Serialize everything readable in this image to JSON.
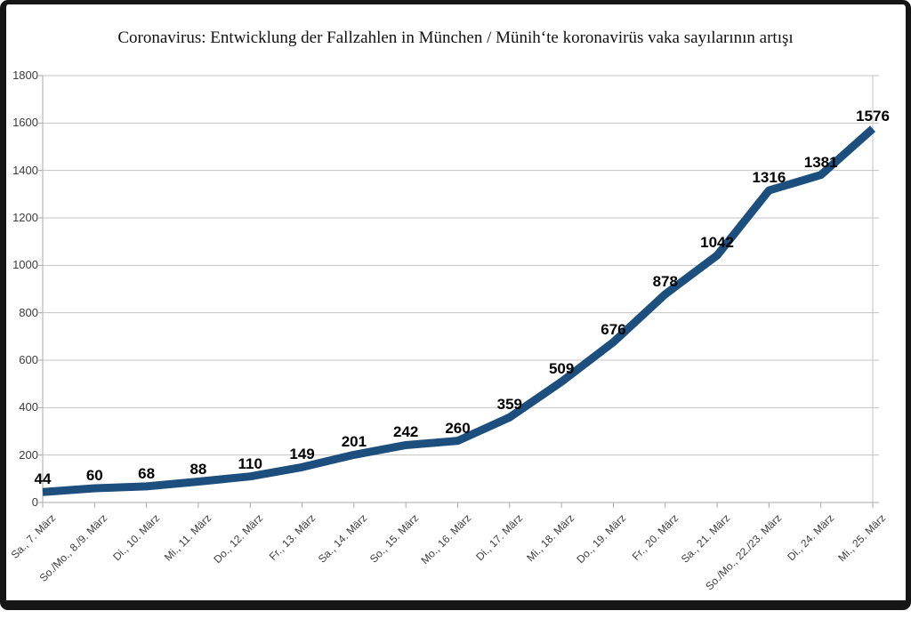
{
  "chart_data": {
    "type": "line",
    "title": "Coronavirus: Entwicklung der Fallzahlen in München / Münih‘te koronavirüs vaka sayılarının artışı",
    "categories": [
      "Sa., 7. März",
      "So./Mo., 8./9. März",
      "Di., 10. März",
      "Mi., 11. März",
      "Do., 12. März",
      "Fr., 13. März",
      "Sa., 14. März",
      "So., 15. März",
      "Mo., 16. März",
      "Di., 17. März",
      "Mi., 18. März",
      "Do., 19. März",
      "Fr., 20. März",
      "Sa., 21. März",
      "So./Mo., 22./23. März",
      "Di., 24. März",
      "Mi., 25. März"
    ],
    "values": [
      44,
      60,
      68,
      88,
      110,
      149,
      201,
      242,
      260,
      359,
      509,
      676,
      878,
      1042,
      1316,
      1381,
      1576
    ],
    "yticks": [
      0,
      200,
      400,
      600,
      800,
      1000,
      1200,
      1400,
      1600,
      1800
    ],
    "ylim": [
      0,
      1800
    ],
    "xlabel": "",
    "ylabel": "",
    "grid": "horizontal",
    "legend": "none",
    "data_labels": true,
    "colors": {
      "line": "#1c4e7e",
      "data_label": "#000000",
      "tick_label": "#3d3d3d",
      "gridline": "#c3c3c3",
      "axis": "#a8a8a8",
      "frame_border": "#161616",
      "background": "#ffffff"
    }
  }
}
